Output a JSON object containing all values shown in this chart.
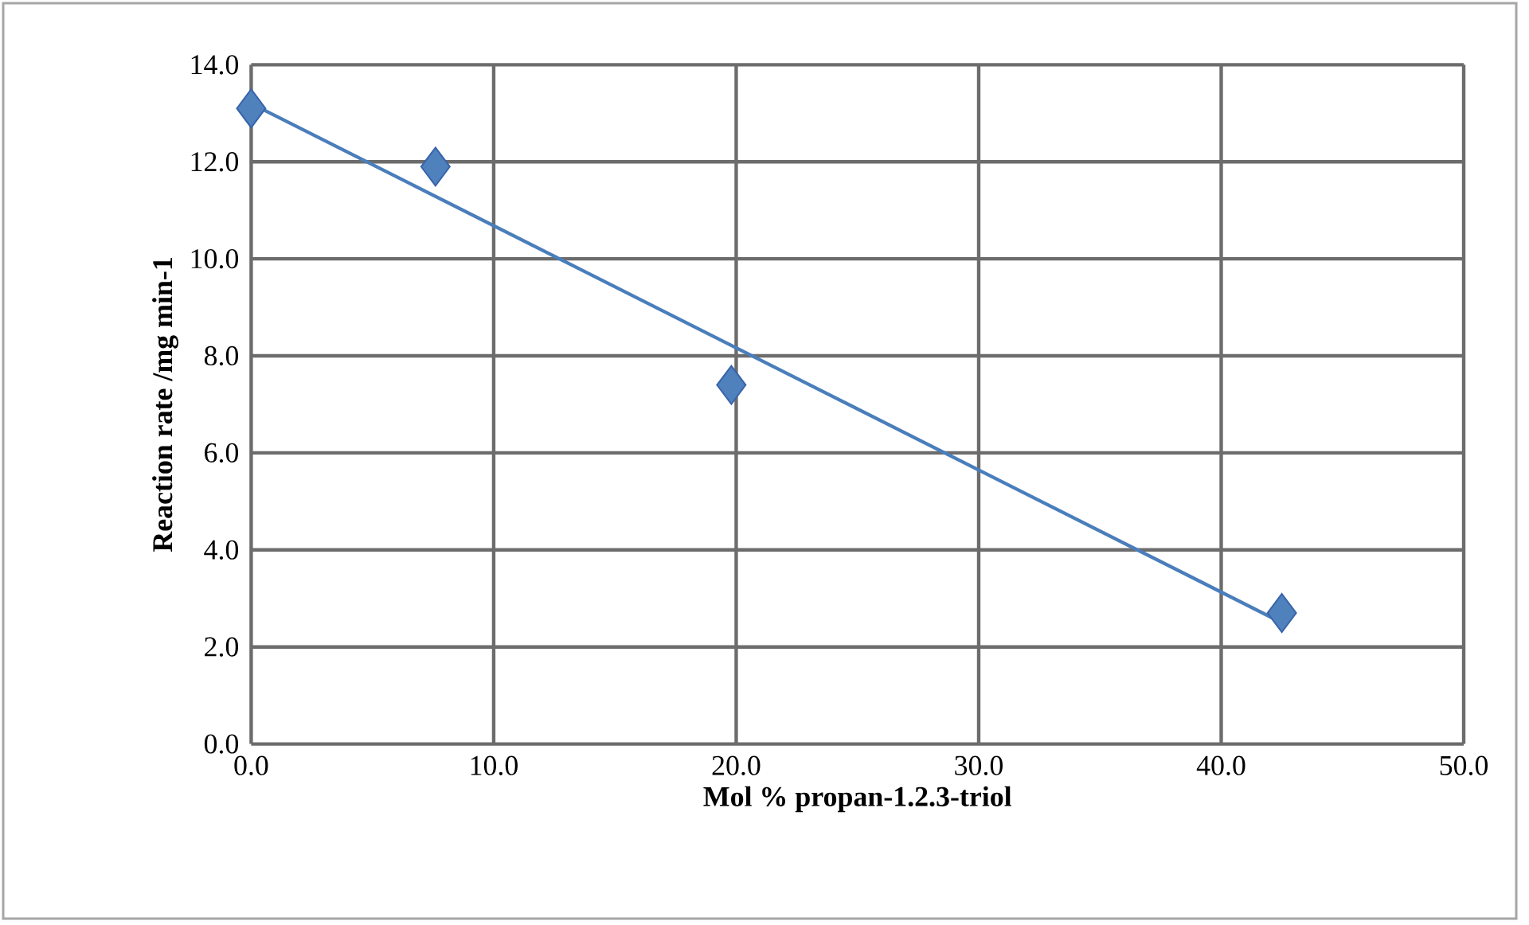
{
  "chart_data": {
    "type": "scatter",
    "xlabel": "Mol % propan-1.2.3-triol",
    "ylabel": "Reaction rate  /mg min-1",
    "x": [
      0,
      7.6,
      19.8,
      42.5
    ],
    "series": [
      {
        "color": "#4f81bd",
        "marker": "diamond",
        "values": [
          13.1,
          11.9,
          7.4,
          2.7
        ]
      },
      {
        "type": "line",
        "color": "#4a7ebb",
        "x": [
          0,
          42.5
        ],
        "values": [
          13.2,
          2.5
        ]
      }
    ],
    "xlim": [
      0,
      50
    ],
    "xticks": [
      {
        "value": 0,
        "label": "0.0"
      },
      {
        "value": 10,
        "label": "10.0"
      },
      {
        "value": 20,
        "label": "20.0"
      },
      {
        "value": 30,
        "label": "30.0"
      },
      {
        "value": 40,
        "label": "40.0"
      },
      {
        "value": 50,
        "label": "50.0"
      }
    ],
    "ylim": [
      0,
      14
    ],
    "yticks": [
      {
        "value": 0,
        "label": "0.0"
      },
      {
        "value": 2,
        "label": "2.0"
      },
      {
        "value": 4,
        "label": "4.0"
      },
      {
        "value": 6,
        "label": "6.0"
      },
      {
        "value": 8,
        "label": "8.0"
      },
      {
        "value": 10,
        "label": "10.0"
      },
      {
        "value": 12,
        "label": "12.0"
      },
      {
        "value": 14,
        "label": "14.0"
      }
    ],
    "grid": true
  }
}
